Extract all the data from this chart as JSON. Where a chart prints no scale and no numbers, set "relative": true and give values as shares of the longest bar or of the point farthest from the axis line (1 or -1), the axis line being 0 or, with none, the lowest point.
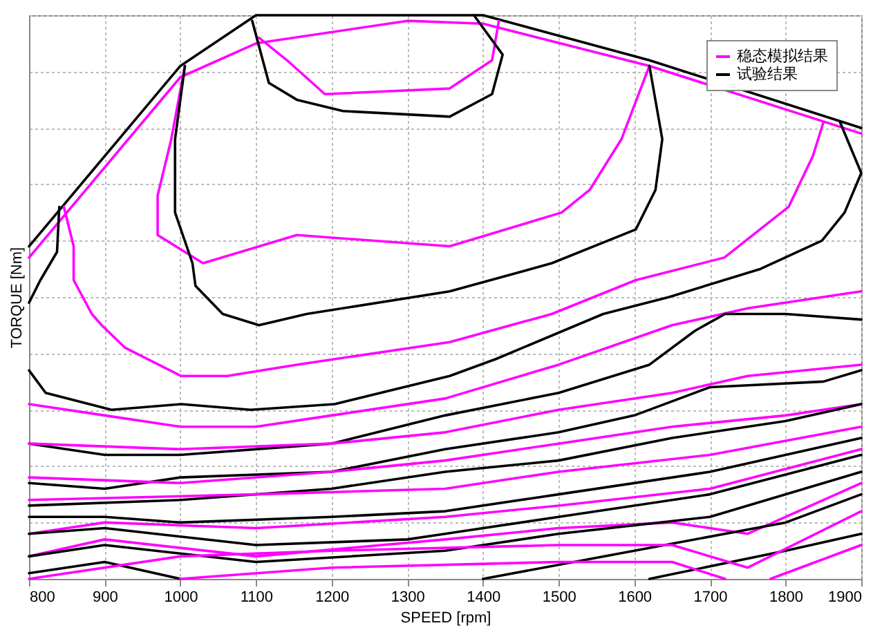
{
  "chart_data": {
    "type": "line",
    "relative": true,
    "xlabel": "SPEED [rpm]",
    "ylabel": "TORQUE [Nm]",
    "xlim": [
      800,
      1900
    ],
    "xticks": [
      800,
      900,
      1000,
      1100,
      1200,
      1300,
      1400,
      1500,
      1600,
      1700,
      1800,
      1900
    ],
    "grid": true,
    "legend": "top right",
    "line_style": "solid",
    "marker": "none",
    "series": [
      {
        "name": "稳态模拟结果",
        "color": "#ff00ff",
        "x": [
          800,
          1000,
          1100,
          1300,
          1400,
          1620,
          1900
        ],
        "values": [
          0.57,
          0.89,
          0.95,
          0.99,
          0.985,
          0.91,
          0.79
        ]
      },
      {
        "name": "试验结果",
        "color": "#000000",
        "x": [
          800,
          1000,
          1100,
          1400,
          1620,
          1900
        ],
        "values": [
          0.59,
          0.91,
          1.0,
          1.0,
          0.92,
          0.8
        ]
      },
      {
        "color": "#ff00ff",
        "x": [
          1104,
          1141,
          1191,
          1356,
          1412,
          1421
        ],
        "values": [
          0.96,
          0.92,
          0.86,
          0.87,
          0.92,
          0.99
        ]
      },
      {
        "color": "#000000",
        "x": [
          1095,
          1117,
          1154,
          1215,
          1356,
          1412,
          1426,
          1388
        ],
        "values": [
          0.99,
          0.88,
          0.85,
          0.83,
          0.82,
          0.86,
          0.93,
          1.0
        ]
      },
      {
        "color": "#ff00ff",
        "x": [
          1006,
          988,
          970,
          970,
          1030,
          1154,
          1356,
          1504,
          1541,
          1583,
          1620
        ],
        "values": [
          0.91,
          0.78,
          0.68,
          0.61,
          0.56,
          0.61,
          0.59,
          0.65,
          0.69,
          0.78,
          0.91
        ]
      },
      {
        "color": "#000000",
        "x": [
          1006,
          993,
          993,
          1016,
          1020,
          1056,
          1104,
          1167,
          1356,
          1491,
          1602,
          1628,
          1637,
          1620
        ],
        "values": [
          0.91,
          0.78,
          0.65,
          0.56,
          0.52,
          0.47,
          0.45,
          0.47,
          0.51,
          0.56,
          0.62,
          0.69,
          0.78,
          0.91
        ]
      },
      {
        "color": "#000000",
        "x": [
          840,
          837,
          815,
          800
        ],
        "values": [
          0.66,
          0.58,
          0.53,
          0.49
        ]
      },
      {
        "color": "#ff00ff",
        "x": [
          846,
          859,
          859,
          883,
          896,
          927,
          1001,
          1062,
          1154,
          1356,
          1491,
          1602,
          1719,
          1804,
          1836,
          1850
        ],
        "values": [
          0.66,
          0.59,
          0.53,
          0.47,
          0.45,
          0.41,
          0.36,
          0.36,
          0.38,
          0.42,
          0.47,
          0.53,
          0.57,
          0.66,
          0.75,
          0.81
        ]
      },
      {
        "color": "#000000",
        "x": [
          800,
          822,
          909,
          1001,
          1093,
          1204,
          1356,
          1417,
          1559,
          1646,
          1767,
          1848,
          1878,
          1900,
          1872
        ],
        "values": [
          0.37,
          0.33,
          0.3,
          0.31,
          0.3,
          0.31,
          0.36,
          0.39,
          0.47,
          0.5,
          0.55,
          0.6,
          0.65,
          0.72,
          0.81
        ]
      },
      {
        "color": "#ff00ff",
        "x": [
          800,
          900,
          1000,
          1100,
          1200,
          1350,
          1500,
          1650,
          1750,
          1900
        ],
        "values": [
          0.31,
          0.29,
          0.27,
          0.27,
          0.29,
          0.32,
          0.38,
          0.45,
          0.48,
          0.51
        ]
      },
      {
        "color": "#000000",
        "x": [
          800,
          900,
          1000,
          1200,
          1350,
          1500,
          1620,
          1680,
          1720,
          1800,
          1900
        ],
        "values": [
          0.24,
          0.22,
          0.22,
          0.24,
          0.29,
          0.33,
          0.38,
          0.44,
          0.47,
          0.47,
          0.46
        ]
      },
      {
        "color": "#ff00ff",
        "x": [
          800,
          1000,
          1200,
          1350,
          1500,
          1650,
          1750,
          1900
        ],
        "values": [
          0.24,
          0.23,
          0.24,
          0.26,
          0.3,
          0.33,
          0.36,
          0.38
        ]
      },
      {
        "color": "#000000",
        "x": [
          800,
          900,
          1000,
          1200,
          1350,
          1500,
          1600,
          1700,
          1850,
          1900
        ],
        "values": [
          0.17,
          0.16,
          0.18,
          0.19,
          0.23,
          0.26,
          0.29,
          0.34,
          0.35,
          0.37
        ]
      },
      {
        "color": "#ff00ff",
        "x": [
          800,
          1000,
          1200,
          1350,
          1500,
          1650,
          1800,
          1900
        ],
        "values": [
          0.18,
          0.17,
          0.19,
          0.21,
          0.24,
          0.27,
          0.29,
          0.31
        ]
      },
      {
        "color": "#000000",
        "x": [
          800,
          1000,
          1200,
          1350,
          1500,
          1650,
          1800,
          1900
        ],
        "values": [
          0.13,
          0.14,
          0.16,
          0.19,
          0.21,
          0.25,
          0.28,
          0.31
        ]
      },
      {
        "color": "#ff00ff",
        "x": [
          800,
          1100,
          1350,
          1500,
          1700,
          1900
        ],
        "values": [
          0.14,
          0.15,
          0.16,
          0.19,
          0.22,
          0.27
        ]
      },
      {
        "color": "#000000",
        "x": [
          800,
          900,
          1000,
          1200,
          1350,
          1500,
          1700,
          1900
        ],
        "values": [
          0.11,
          0.11,
          0.1,
          0.11,
          0.12,
          0.15,
          0.19,
          0.25
        ]
      },
      {
        "color": "#ff00ff",
        "x": [
          800,
          900,
          1100,
          1350,
          1500,
          1700,
          1900
        ],
        "values": [
          0.08,
          0.1,
          0.09,
          0.11,
          0.13,
          0.16,
          0.23
        ]
      },
      {
        "color": "#000000",
        "x": [
          800,
          900,
          1100,
          1300,
          1350,
          1500,
          1700,
          1900
        ],
        "values": [
          0.08,
          0.09,
          0.06,
          0.07,
          0.08,
          0.11,
          0.15,
          0.22
        ]
      },
      {
        "color": "#ff00ff",
        "x": [
          800,
          900,
          1100,
          1350,
          1500,
          1650,
          1750,
          1900
        ],
        "values": [
          0.04,
          0.07,
          0.04,
          0.07,
          0.09,
          0.1,
          0.08,
          0.17
        ]
      },
      {
        "color": "#000000",
        "x": [
          800,
          900,
          1100,
          1350,
          1500,
          1700,
          1900
        ],
        "values": [
          0.04,
          0.06,
          0.03,
          0.05,
          0.08,
          0.11,
          0.19
        ]
      },
      {
        "color": "#000000",
        "x": [
          800,
          900,
          1000
        ],
        "values": [
          0.01,
          0.03,
          0.0
        ]
      },
      {
        "color": "#000000",
        "x": [
          1400,
          1600,
          1800,
          1900
        ],
        "values": [
          0.0,
          0.05,
          0.1,
          0.15
        ]
      },
      {
        "color": "#000000",
        "x": [
          1620,
          1800,
          1900
        ],
        "values": [
          0.0,
          0.05,
          0.08
        ]
      },
      {
        "color": "#ff00ff",
        "x": [
          800,
          1000,
          1200,
          1500,
          1650,
          1750,
          1900
        ],
        "values": [
          0.0,
          0.04,
          0.05,
          0.06,
          0.06,
          0.02,
          0.12
        ]
      },
      {
        "color": "#ff00ff",
        "x": [
          1000,
          1200,
          1500,
          1650,
          1720
        ],
        "values": [
          0.0,
          0.02,
          0.03,
          0.03,
          0.0
        ]
      },
      {
        "color": "#ff00ff",
        "x": [
          1780,
          1900
        ],
        "values": [
          0.0,
          0.06
        ]
      }
    ]
  }
}
